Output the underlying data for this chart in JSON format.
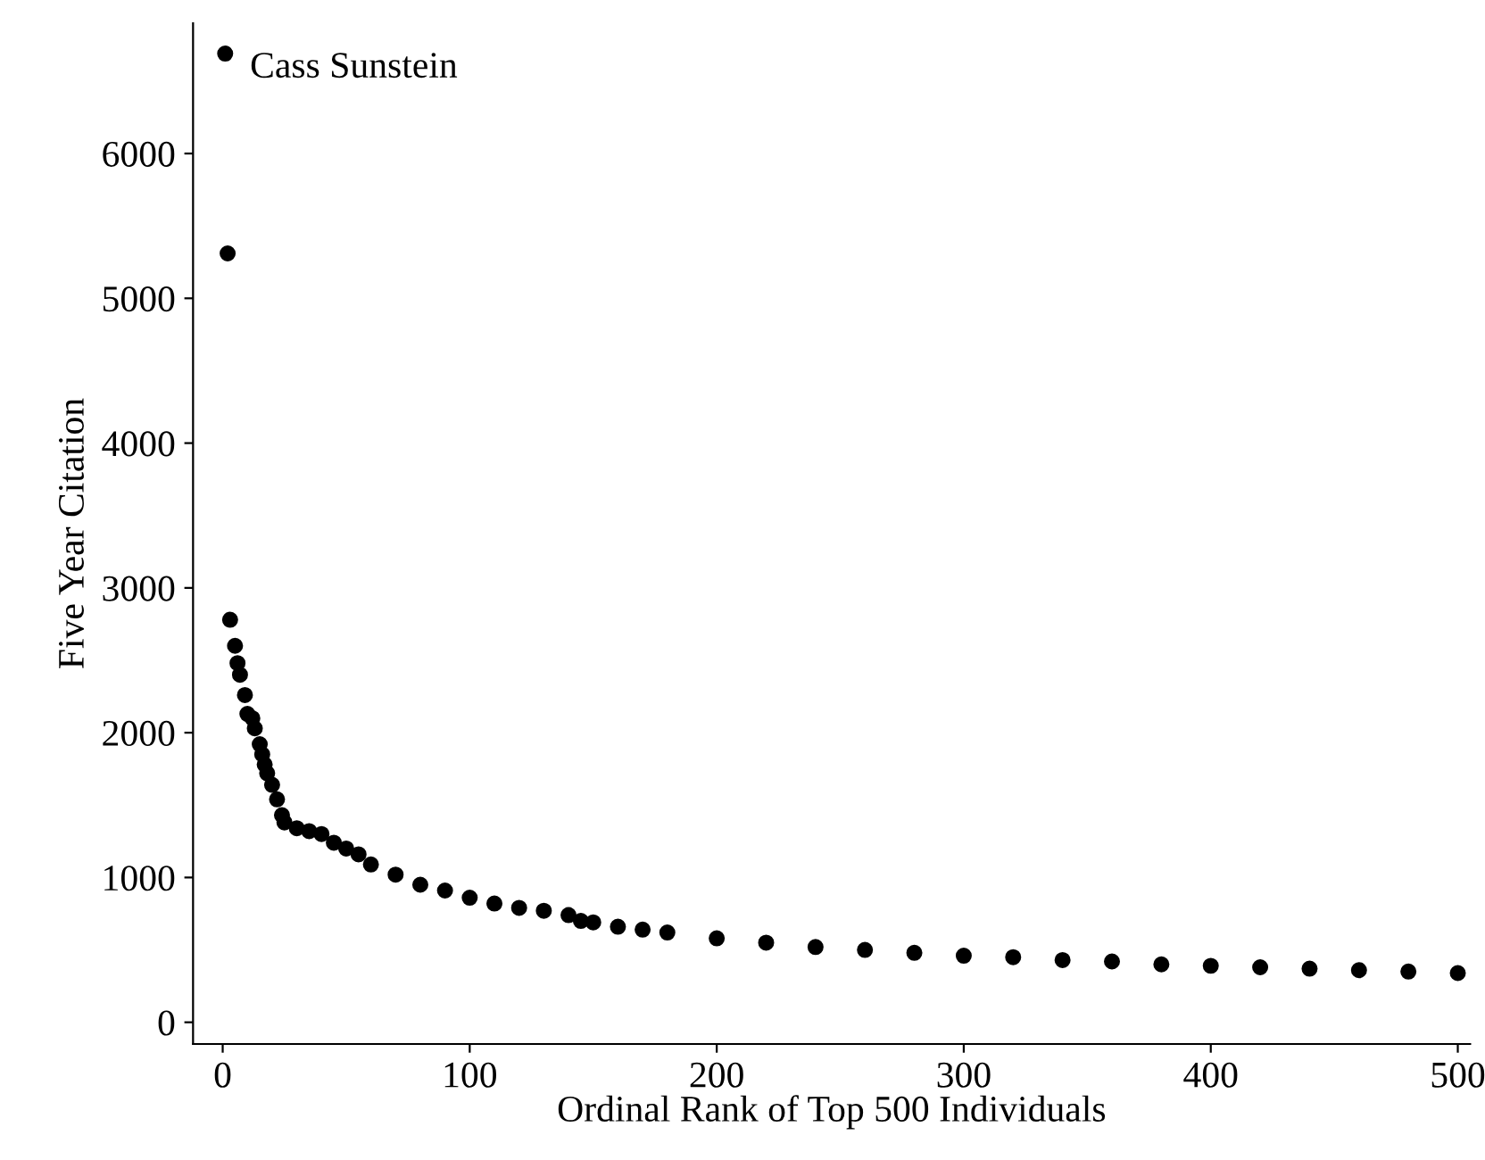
{
  "chart_data": {
    "type": "scatter",
    "xlabel": "Ordinal Rank of Top 500 Individuals",
    "ylabel": "Five Year Citation",
    "x": [
      1,
      2,
      3,
      5,
      6,
      7,
      9,
      10,
      12,
      13,
      15,
      16,
      17,
      18,
      20,
      22,
      24,
      25,
      30,
      35,
      40,
      45,
      50,
      55,
      60,
      70,
      80,
      90,
      100,
      110,
      120,
      130,
      140,
      145,
      150,
      160,
      170,
      180,
      200,
      220,
      240,
      260,
      280,
      300,
      320,
      340,
      360,
      380,
      400,
      420,
      440,
      460,
      480,
      500
    ],
    "series": [
      {
        "color": "#000000",
        "values": [
          6690,
          5310,
          2780,
          2600,
          2480,
          2400,
          2260,
          2130,
          2100,
          2030,
          1920,
          1850,
          1780,
          1720,
          1640,
          1540,
          1430,
          1380,
          1340,
          1320,
          1300,
          1240,
          1200,
          1160,
          1090,
          1020,
          950,
          910,
          860,
          820,
          790,
          770,
          740,
          700,
          690,
          660,
          640,
          620,
          580,
          550,
          520,
          500,
          480,
          460,
          450,
          430,
          420,
          400,
          390,
          380,
          370,
          360,
          350,
          340
        ]
      }
    ],
    "marker": "circle",
    "grid": false,
    "legend": false,
    "xlim": [
      -12,
      505
    ],
    "ylim": [
      -150,
      6900
    ],
    "xticks": [
      0,
      100,
      200,
      300,
      400,
      500
    ],
    "yticks": [
      0,
      1000,
      2000,
      3000,
      4000,
      5000,
      6000
    ],
    "annotations": [
      {
        "text": "Cass Sunstein",
        "x": 1,
        "y": 6690
      }
    ]
  }
}
